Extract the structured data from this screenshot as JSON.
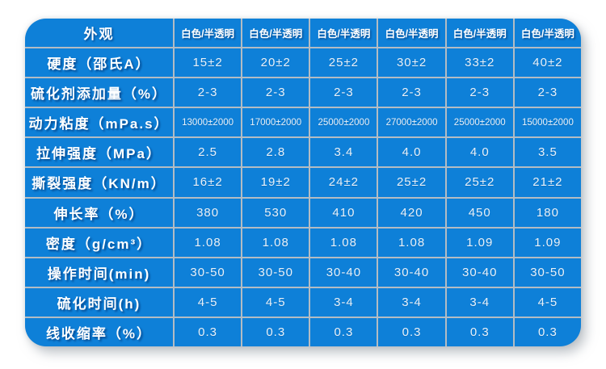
{
  "colors": {
    "table_blue": "#0e80d8",
    "grid_line": "#b3bcc3",
    "label_text": "#ffffff",
    "value_text": "#e9f1f8",
    "page_background": "#ffffff"
  },
  "chart_data": {
    "type": "table",
    "header": [
      "外观",
      "白色/半透明",
      "白色/半透明",
      "白色/半透明",
      "白色/半透明",
      "白色/半透明",
      "白色/半透明"
    ],
    "rows": [
      [
        "硬度（邵氏A）",
        "15±2",
        "20±2",
        "25±2",
        "30±2",
        "33±2",
        "40±2"
      ],
      [
        "硫化剂添加量（%）",
        "2-3",
        "2-3",
        "2-3",
        "2-3",
        "2-3",
        "2-3"
      ],
      [
        "动力粘度（mPa.s）",
        "13000±2000",
        "17000±2000",
        "25000±2000",
        "27000±2000",
        "25000±2000",
        "15000±2000"
      ],
      [
        "拉伸强度（MPa）",
        "2.5",
        "2.8",
        "3.4",
        "4.0",
        "4.0",
        "3.5"
      ],
      [
        "撕裂强度（KN/m）",
        "16±2",
        "19±2",
        "24±2",
        "25±2",
        "25±2",
        "21±2"
      ],
      [
        "伸长率（%）",
        "380",
        "530",
        "410",
        "420",
        "450",
        "180"
      ],
      [
        "密度（g/cm³）",
        "1.08",
        "1.08",
        "1.08",
        "1.08",
        "1.09",
        "1.09"
      ],
      [
        "操作时间(min)",
        "30-50",
        "30-50",
        "30-40",
        "30-40",
        "30-40",
        "30-50"
      ],
      [
        "硫化时间(h)",
        "4-5",
        "4-5",
        "3-4",
        "3-4",
        "3-4",
        "4-5"
      ],
      [
        "线收缩率（%）",
        "0.3",
        "0.3",
        "0.3",
        "0.3",
        "0.3",
        "0.3"
      ]
    ],
    "small_font_row_index": 2,
    "layout": {
      "label_column": "wide-left",
      "value_columns": 6,
      "grid": "on"
    }
  }
}
